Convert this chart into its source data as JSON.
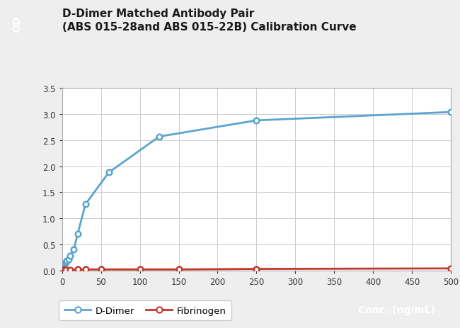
{
  "title_line1": "D-Dimer Matched Antibody Pair",
  "title_line2": "(ABS 015-28and ABS 015-22B) Calibration Curve",
  "ylabel": "OD",
  "xlabel_box_text": "Conc. (ng/mL)",
  "ddimer_x": [
    0.5,
    1,
    2,
    3,
    4,
    5,
    6,
    8,
    10,
    15,
    20,
    30,
    60,
    125,
    250,
    500
  ],
  "ddimer_y": [
    0.02,
    0.05,
    0.08,
    0.1,
    0.13,
    0.16,
    0.19,
    0.22,
    0.28,
    0.4,
    0.7,
    1.27,
    1.88,
    2.57,
    2.88,
    3.04
  ],
  "fibrinogen_x": [
    0.5,
    1,
    2,
    3,
    4,
    5,
    10,
    20,
    30,
    50,
    100,
    150,
    250,
    500
  ],
  "fibrinogen_y": [
    0.01,
    0.01,
    0.01,
    0.01,
    0.01,
    0.01,
    0.01,
    0.02,
    0.02,
    0.02,
    0.02,
    0.02,
    0.03,
    0.04
  ],
  "ddimer_color": "#5BA4CF",
  "fibrinogen_color": "#C0392B",
  "ylim": [
    0,
    3.5
  ],
  "xlim": [
    0,
    500
  ],
  "yticks": [
    0.0,
    0.5,
    1.0,
    1.5,
    2.0,
    2.5,
    3.0,
    3.5
  ],
  "xticks": [
    0,
    50,
    100,
    150,
    200,
    250,
    300,
    350,
    400,
    450,
    500
  ],
  "bg_color": "#ffffff",
  "fig_bg_color": "#eeeeee",
  "grid_color": "#cccccc",
  "title_color": "#1a1a1a",
  "label_box_bg": "#1a3060",
  "label_box_fg": "#ffffff",
  "od_box_bg": "#5BA4CF",
  "legend_ddimer": "D-Dimer",
  "legend_fibrinogen": "Fibrinogen",
  "spine_color": "#aaaaaa"
}
